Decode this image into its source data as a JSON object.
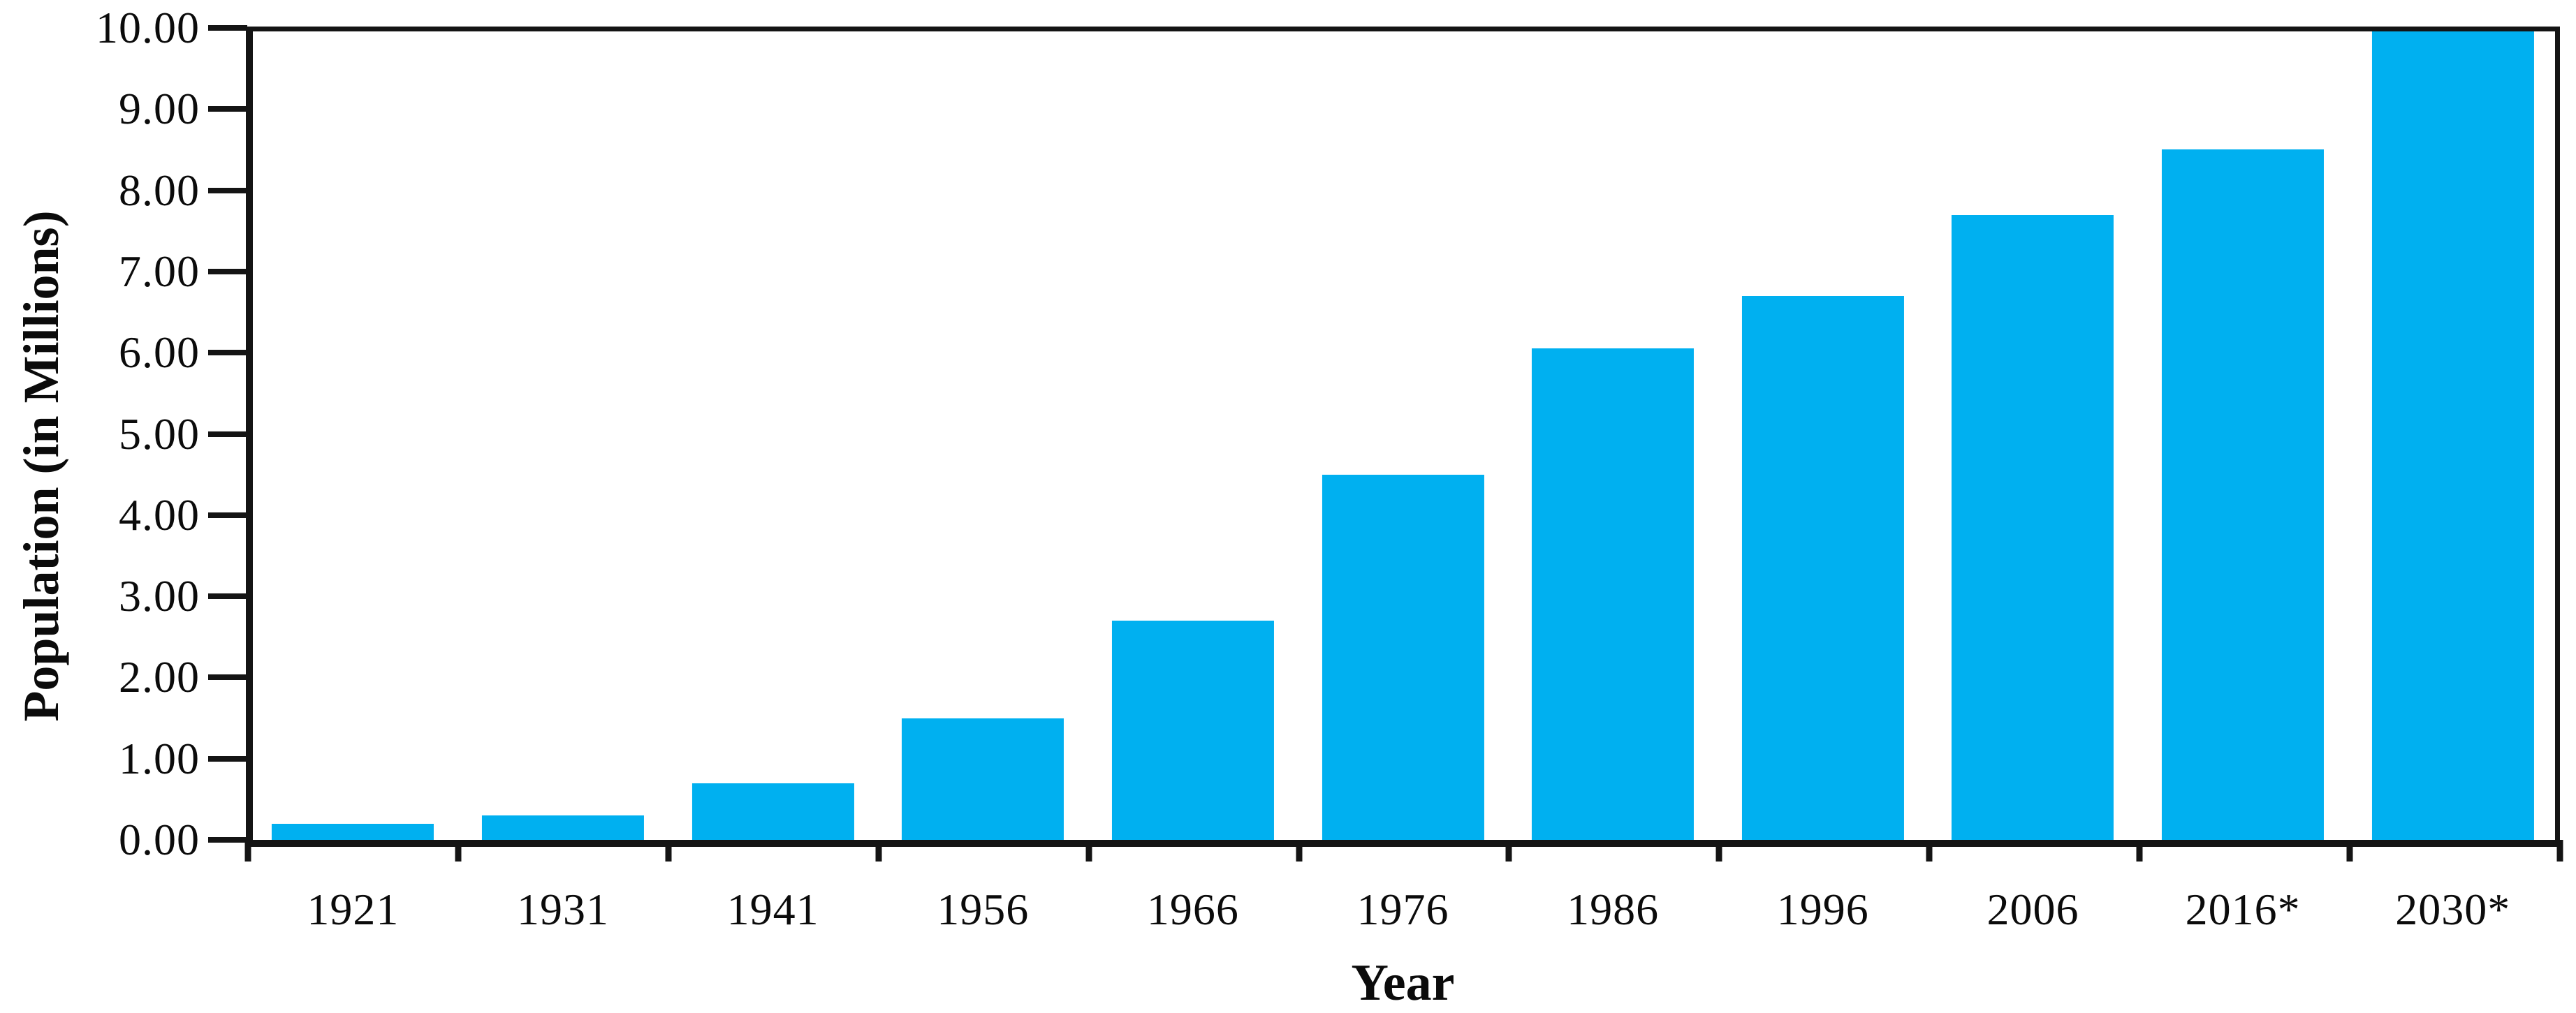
{
  "chart_data": {
    "type": "bar",
    "title": "",
    "xlabel": "Year",
    "ylabel": "Population (in Millions)",
    "categories": [
      "1921",
      "1931",
      "1941",
      "1956",
      "1966",
      "1976",
      "1986",
      "1996",
      "2006",
      "2016*",
      "2030*"
    ],
    "values": [
      0.2,
      0.3,
      0.7,
      1.5,
      2.7,
      4.5,
      6.05,
      6.7,
      7.7,
      8.5,
      10.0
    ],
    "ylim": [
      0,
      10
    ],
    "y_tick_step": 1.0,
    "y_tick_labels": [
      "0.00",
      "1.00",
      "2.00",
      "3.00",
      "4.00",
      "5.00",
      "6.00",
      "7.00",
      "8.00",
      "9.00",
      "10.00"
    ],
    "grid": false,
    "legend": "none",
    "bar_color": "#00b0f0",
    "axis_color": "#141414",
    "text_color": "#0b0b0b",
    "background_color": "#ffffff"
  }
}
